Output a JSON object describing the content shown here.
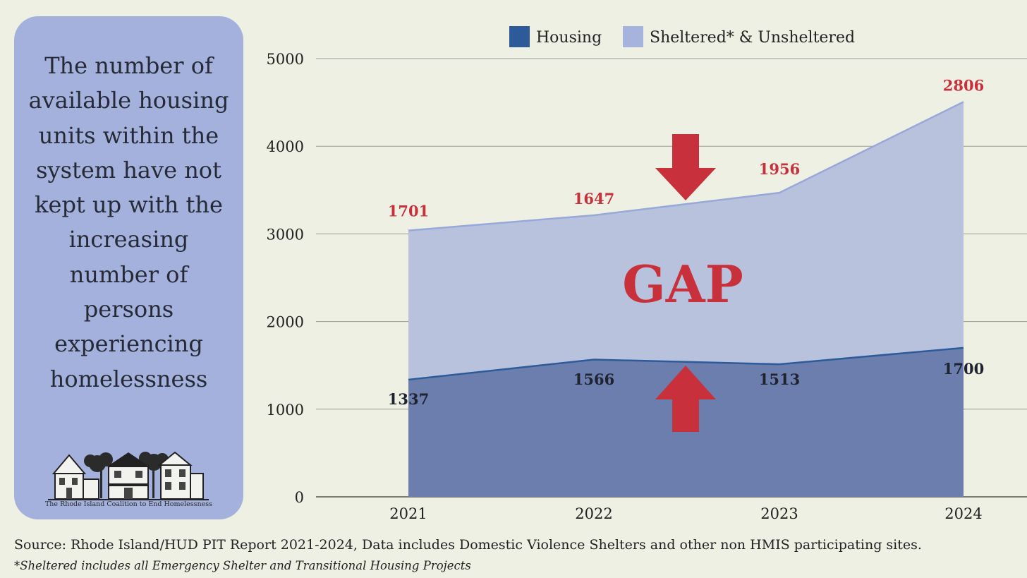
{
  "panel": {
    "text": "The number of available housing units within the system have not kept up with the increasing number of persons experiencing homelessness",
    "logo_caption": "The Rhode Island Coalition to End Homelessness"
  },
  "chart_data": {
    "type": "area",
    "stacked": true,
    "categories": [
      "2021",
      "2022",
      "2023",
      "2024"
    ],
    "series": [
      {
        "name": "Housing",
        "values": [
          1337,
          1566,
          1513,
          1700
        ],
        "color": "#6b7eae",
        "legend_color": "#2d5b9a"
      },
      {
        "name": "Sheltered* & Unsheltered",
        "values": [
          1701,
          1647,
          1956,
          2806
        ],
        "color": "#b8c2dd",
        "legend_color": "#a6b3dd"
      }
    ],
    "ylim": [
      0,
      5000
    ],
    "yticks": [
      0,
      1000,
      2000,
      3000,
      4000,
      5000
    ],
    "grid": true,
    "legend_position": "top",
    "annotation": "GAP",
    "label_colors": {
      "sheltered": "#c8313b",
      "housing": "#1f2330"
    }
  },
  "footer": {
    "source": "Source: Rhode Island/HUD PIT Report 2021-2024, Data includes Domestic Violence Shelters and other non HMIS participating sites.",
    "note": "*Sheltered includes all Emergency Shelter and Transitional Housing Projects"
  }
}
